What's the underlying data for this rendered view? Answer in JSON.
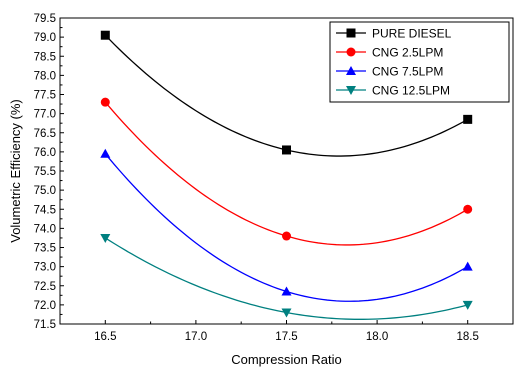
{
  "chart_data": {
    "type": "line",
    "title": "",
    "xlabel": "Compression Ratio",
    "ylabel": "Volumetric Efficiency (%)",
    "xlim": [
      16.25,
      18.75
    ],
    "ylim": [
      71.5,
      79.5
    ],
    "x_ticks": [
      "16.5",
      "17.0",
      "17.5",
      "18.0",
      "18.5"
    ],
    "y_ticks": [
      "71.5",
      "72.0",
      "72.5",
      "73.0",
      "73.5",
      "74.0",
      "74.5",
      "75.0",
      "75.5",
      "76.0",
      "76.5",
      "77.0",
      "77.5",
      "78.0",
      "78.5",
      "79.0",
      "79.5"
    ],
    "grid": false,
    "legend_position": "top-right",
    "x": [
      16.5,
      17.5,
      18.5
    ],
    "series": [
      {
        "name": "PURE DIESEL",
        "values": [
          79.05,
          76.05,
          76.85
        ],
        "color": "#000000",
        "marker": "square"
      },
      {
        "name": "CNG 2.5LPM",
        "values": [
          77.3,
          73.8,
          74.5
        ],
        "color": "#ff0000",
        "marker": "circle"
      },
      {
        "name": "CNG 7.5LPM",
        "values": [
          75.95,
          72.35,
          73.0
        ],
        "color": "#0000ff",
        "marker": "triangle-up"
      },
      {
        "name": "CNG 12.5LPM",
        "values": [
          73.75,
          71.8,
          72.0
        ],
        "color": "#008080",
        "marker": "triangle-down"
      }
    ]
  }
}
